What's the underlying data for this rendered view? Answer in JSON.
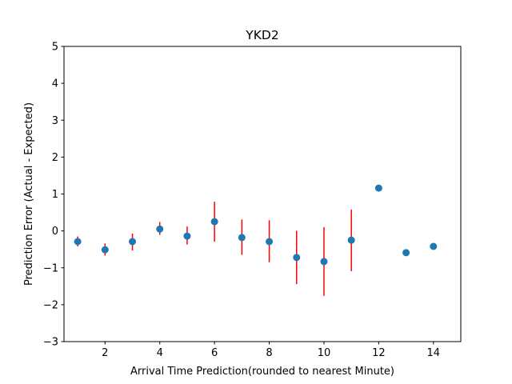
{
  "chart_data": {
    "type": "scatter",
    "title": "YKD2",
    "xlabel": "Arrival Time Prediction(rounded to nearest Minute)",
    "ylabel": "Prediction Error (Actual - Expected)",
    "xlim": [
      0.5,
      15
    ],
    "ylim": [
      -3,
      5
    ],
    "xticks": [
      "2",
      "4",
      "6",
      "8",
      "10",
      "12",
      "14"
    ],
    "yticks": [
      "−3",
      "−2",
      "−1",
      "0",
      "1",
      "2",
      "3",
      "4",
      "5"
    ],
    "grid": false,
    "colors": {
      "marker": "#1f77b4",
      "errorbar": "#ff0000",
      "axes": "#000000"
    },
    "points": [
      {
        "x": 1,
        "y": -0.29,
        "ylow": -0.42,
        "yhigh": -0.15
      },
      {
        "x": 2,
        "y": -0.51,
        "ylow": -0.67,
        "yhigh": -0.34
      },
      {
        "x": 3,
        "y": -0.29,
        "ylow": -0.53,
        "yhigh": -0.07
      },
      {
        "x": 4,
        "y": 0.05,
        "ylow": -0.11,
        "yhigh": 0.24
      },
      {
        "x": 5,
        "y": -0.14,
        "ylow": -0.37,
        "yhigh": 0.12
      },
      {
        "x": 6,
        "y": 0.25,
        "ylow": -0.29,
        "yhigh": 0.79
      },
      {
        "x": 7,
        "y": -0.18,
        "ylow": -0.65,
        "yhigh": 0.31
      },
      {
        "x": 8,
        "y": -0.29,
        "ylow": -0.85,
        "yhigh": 0.29
      },
      {
        "x": 9,
        "y": -0.72,
        "ylow": -1.44,
        "yhigh": 0.0
      },
      {
        "x": 10,
        "y": -0.83,
        "ylow": -1.76,
        "yhigh": 0.1
      },
      {
        "x": 11,
        "y": -0.25,
        "ylow": -1.09,
        "yhigh": 0.58
      },
      {
        "x": 12,
        "y": 1.16,
        "ylow": 1.16,
        "yhigh": 1.16
      },
      {
        "x": 13,
        "y": -0.59,
        "ylow": -0.59,
        "yhigh": -0.59
      },
      {
        "x": 14,
        "y": -0.42,
        "ylow": -0.5,
        "yhigh": -0.34
      }
    ]
  }
}
